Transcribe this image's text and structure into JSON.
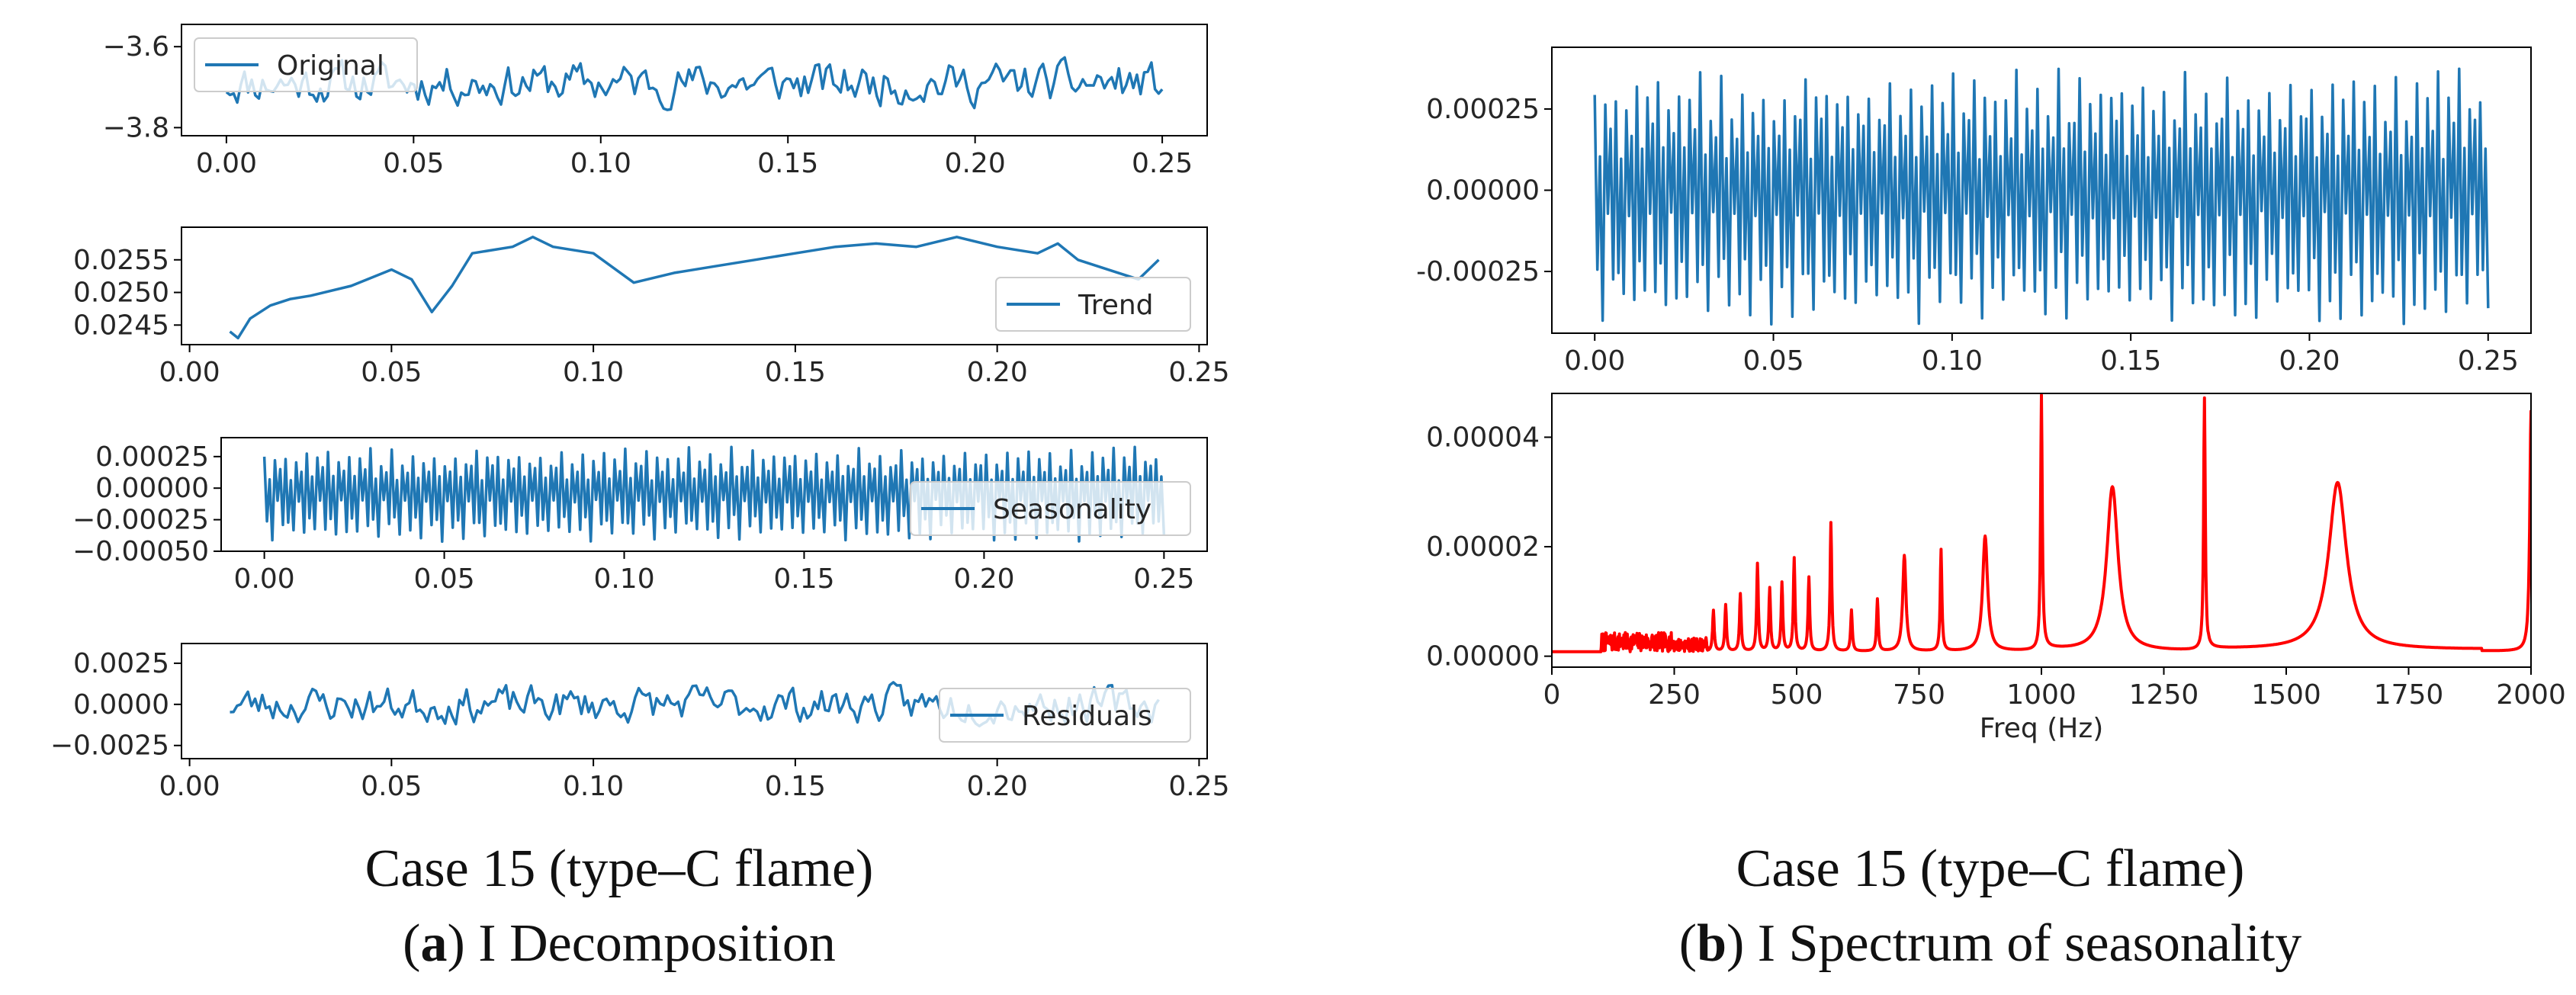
{
  "colors": {
    "series_blue": "#1f77b4",
    "spectrum_red": "#ff0000",
    "axis": "#000000",
    "text": "#262626"
  },
  "chart_data": [
    {
      "id": "original",
      "type": "line",
      "legend": "Original",
      "legend_loc": "upper-left",
      "xlim": [
        -0.012,
        0.262
      ],
      "ylim": [
        -3.82,
        -3.545
      ],
      "x_range": [
        0.0,
        0.25
      ],
      "xticks": [
        0.0,
        0.05,
        0.1,
        0.15,
        0.2,
        0.25
      ],
      "xtick_labels": [
        "0.00",
        "0.05",
        "0.10",
        "0.15",
        "0.20",
        "0.25"
      ],
      "yticks": [
        -3.6,
        -3.8
      ],
      "ytick_labels": [
        "−3.6",
        "−3.8"
      ],
      "signal": {
        "mean": -3.69,
        "amp": 0.065,
        "seed": 11,
        "n": 260,
        "kind": "noise"
      }
    },
    {
      "id": "trend",
      "type": "line",
      "legend": "Trend",
      "legend_loc": "lower-right",
      "xlim": [
        -0.002,
        0.252
      ],
      "ylim": [
        0.0242,
        0.026
      ],
      "xticks": [
        0.0,
        0.05,
        0.1,
        0.15,
        0.2,
        0.25
      ],
      "xtick_labels": [
        "0.00",
        "0.05",
        "0.10",
        "0.15",
        "0.20",
        "0.25"
      ],
      "yticks": [
        0.0255,
        0.025,
        0.0245
      ],
      "ytick_labels": [
        "0.0255",
        "0.0250",
        "0.0245"
      ],
      "x": [
        0.01,
        0.012,
        0.015,
        0.02,
        0.025,
        0.03,
        0.04,
        0.05,
        0.055,
        0.06,
        0.065,
        0.07,
        0.08,
        0.085,
        0.09,
        0.1,
        0.11,
        0.12,
        0.13,
        0.14,
        0.15,
        0.16,
        0.17,
        0.18,
        0.19,
        0.2,
        0.21,
        0.215,
        0.22,
        0.23,
        0.235,
        0.24
      ],
      "y": [
        0.0244,
        0.0243,
        0.0246,
        0.0248,
        0.0249,
        0.02495,
        0.0251,
        0.02535,
        0.0252,
        0.0247,
        0.0251,
        0.0256,
        0.0257,
        0.02585,
        0.0257,
        0.0256,
        0.02515,
        0.0253,
        0.0254,
        0.0255,
        0.0256,
        0.0257,
        0.02575,
        0.0257,
        0.02585,
        0.0257,
        0.0256,
        0.02575,
        0.0255,
        0.0253,
        0.0252,
        0.0255
      ]
    },
    {
      "id": "seasonality",
      "type": "line",
      "legend": "Seasonality",
      "legend_loc": "lower-right",
      "xlim": [
        -0.012,
        0.262
      ],
      "ylim": [
        -0.0005,
        0.0004
      ],
      "x_range": [
        0.0,
        0.25
      ],
      "xticks": [
        0.0,
        0.05,
        0.1,
        0.15,
        0.2,
        0.25
      ],
      "xtick_labels": [
        "0.00",
        "0.05",
        "0.10",
        "0.15",
        "0.20",
        "0.25"
      ],
      "yticks": [
        0.00025,
        0.0,
        -0.00025,
        -0.0005
      ],
      "ytick_labels": [
        "0.00025",
        "0.00000",
        "−0.00025",
        "−0.00050"
      ],
      "signal": {
        "mean": -3e-05,
        "amp": 0.0004,
        "seed": 5,
        "n": 340,
        "kind": "periodic"
      }
    },
    {
      "id": "residuals",
      "type": "line",
      "legend": "Residuals",
      "legend_loc": "lower-right",
      "xlim": [
        -0.002,
        0.252
      ],
      "ylim": [
        -0.0033,
        0.0037
      ],
      "x_range": [
        0.01,
        0.24
      ],
      "xticks": [
        0.0,
        0.05,
        0.1,
        0.15,
        0.2,
        0.25
      ],
      "xtick_labels": [
        "0.00",
        "0.05",
        "0.10",
        "0.15",
        "0.20",
        "0.25"
      ],
      "yticks": [
        0.0025,
        0.0,
        -0.0025
      ],
      "ytick_labels": [
        "0.0025",
        "0.0000",
        "−0.0025"
      ],
      "signal": {
        "mean": 0.0,
        "amp": 0.0014,
        "seed": 23,
        "n": 260,
        "kind": "noise"
      }
    },
    {
      "id": "seasonality-b",
      "type": "line",
      "legend": "",
      "xlim": [
        -0.012,
        0.262
      ],
      "ylim": [
        -0.00044,
        0.00044
      ],
      "x_range": [
        0.0,
        0.25
      ],
      "xticks": [
        0.0,
        0.05,
        0.1,
        0.15,
        0.2,
        0.25
      ],
      "xtick_labels": [
        "0.00",
        "0.05",
        "0.10",
        "0.15",
        "0.20",
        "0.25"
      ],
      "yticks": [
        0.00025,
        0.0,
        -0.00025
      ],
      "ytick_labels": [
        "0.00025",
        "0.00000",
        "-0.00025"
      ],
      "signal": {
        "mean": 0.0,
        "amp": 0.00042,
        "seed": 5,
        "n": 340,
        "kind": "periodic"
      }
    },
    {
      "id": "spectrum",
      "type": "line",
      "legend": "",
      "xlabel": "Freq (Hz)",
      "xlim": [
        0,
        2000
      ],
      "ylim": [
        -2e-06,
        4.8e-05
      ],
      "xticks": [
        0,
        250,
        500,
        750,
        1000,
        1250,
        1500,
        1750,
        2000
      ],
      "xtick_labels": [
        "0",
        "250",
        "500",
        "750",
        "1000",
        "1250",
        "1500",
        "1750",
        "2000"
      ],
      "yticks": [
        4e-05,
        2e-05,
        0.0
      ],
      "ytick_labels": [
        "0.00004",
        "0.00002",
        "0.00000"
      ],
      "baseline": 8e-07,
      "peaks": [
        {
          "f": 330,
          "a": 7.5e-06,
          "w": 2
        },
        {
          "f": 355,
          "a": 8.5e-06,
          "w": 2
        },
        {
          "f": 385,
          "a": 1.05e-05,
          "w": 2
        },
        {
          "f": 420,
          "a": 1.6e-05,
          "w": 2
        },
        {
          "f": 445,
          "a": 1.15e-05,
          "w": 2
        },
        {
          "f": 470,
          "a": 1.25e-05,
          "w": 2
        },
        {
          "f": 495,
          "a": 1.7e-05,
          "w": 2
        },
        {
          "f": 525,
          "a": 1.35e-05,
          "w": 2
        },
        {
          "f": 570,
          "a": 2.35e-05,
          "w": 2
        },
        {
          "f": 612,
          "a": 7.5e-06,
          "w": 2
        },
        {
          "f": 665,
          "a": 9.5e-06,
          "w": 2
        },
        {
          "f": 720,
          "a": 1.75e-05,
          "w": 4
        },
        {
          "f": 795,
          "a": 1.85e-05,
          "w": 2
        },
        {
          "f": 885,
          "a": 2.1e-05,
          "w": 6
        },
        {
          "f": 1000,
          "a": 4.65e-05,
          "w": 2
        },
        {
          "f": 1145,
          "a": 3e-05,
          "w": 14
        },
        {
          "f": 1333,
          "a": 4.6e-05,
          "w": 2
        },
        {
          "f": 1605,
          "a": 3.05e-05,
          "w": 22
        },
        {
          "f": 2000,
          "a": 4.4e-05,
          "w": 3
        }
      ]
    }
  ],
  "captions": {
    "a_line1": "Case 15 (type–C flame)",
    "a_letter": "a",
    "a_rest": ") I Decomposition",
    "b_line1": "Case 15 (type–C flame)",
    "b_letter": "b",
    "b_rest": ") I Spectrum of seasonality"
  }
}
